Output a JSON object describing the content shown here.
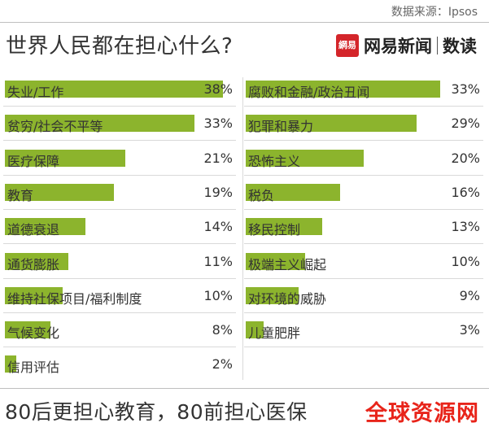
{
  "source": "数据来源：Ipsos",
  "title": "世界人民都在担心什么?",
  "logo": {
    "badge": "網易",
    "brand": "网易新闻",
    "sub": "数读"
  },
  "footer": "80后更担心教育，80前担心医保",
  "watermark": "全球资源网",
  "colors": {
    "bar": "#8cb42d"
  },
  "chart_data": [
    {
      "type": "bar",
      "orientation": "horizontal",
      "unit": "%",
      "xlim": [
        0,
        40
      ],
      "categories": [
        "失业/工作",
        "贫穷/社会不平等",
        "医疗保障",
        "教育",
        "道德衰退",
        "通货膨胀",
        "维持社保项目/福利制度",
        "气候变化",
        "信用评估"
      ],
      "values": [
        38,
        33,
        21,
        19,
        14,
        11,
        10,
        8,
        2
      ],
      "labels": [
        "38%",
        "33%",
        "21%",
        "19%",
        "14%",
        "11%",
        "10%",
        "8%",
        "2%"
      ]
    },
    {
      "type": "bar",
      "orientation": "horizontal",
      "unit": "%",
      "xlim": [
        0,
        40
      ],
      "categories": [
        "腐败和金融/政治丑闻",
        "犯罪和暴力",
        "恐怖主义",
        "税负",
        "移民控制",
        "极端主义崛起",
        "对环境的威胁",
        "儿童肥胖"
      ],
      "values": [
        33,
        29,
        20,
        16,
        13,
        10,
        9,
        3
      ],
      "labels": [
        "33%",
        "29%",
        "20%",
        "16%",
        "13%",
        "10%",
        "9%",
        "3%"
      ]
    }
  ]
}
